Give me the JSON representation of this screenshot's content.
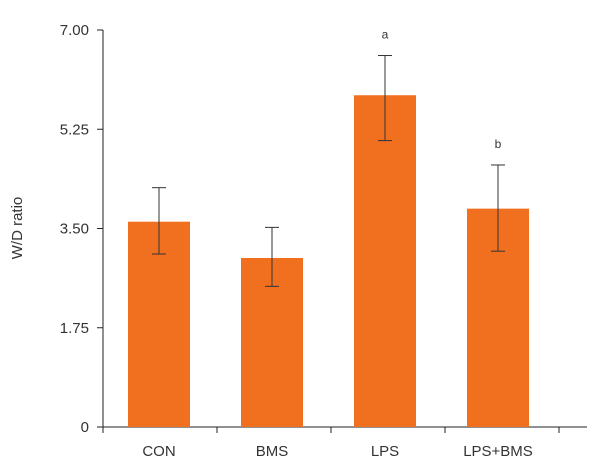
{
  "chart_data": {
    "type": "bar",
    "title": "",
    "xlabel": "",
    "ylabel": "W/D ratio",
    "ylim": [
      0,
      7.0
    ],
    "yticks": [
      0,
      1.75,
      3.5,
      5.25,
      7.0
    ],
    "ytick_labels": [
      "0",
      "1.75",
      "3.50",
      "5.25",
      "7.00"
    ],
    "categories": [
      "CON",
      "BMS",
      "LPS",
      "LPS+BMS"
    ],
    "values": [
      3.62,
      2.98,
      5.85,
      3.85
    ],
    "error_low": [
      3.05,
      2.48,
      5.05,
      3.1
    ],
    "error_high": [
      4.22,
      3.52,
      6.55,
      4.62
    ],
    "annotations": [
      "",
      "",
      "a",
      "b"
    ],
    "bar_color": "#f07020",
    "grid": false
  }
}
